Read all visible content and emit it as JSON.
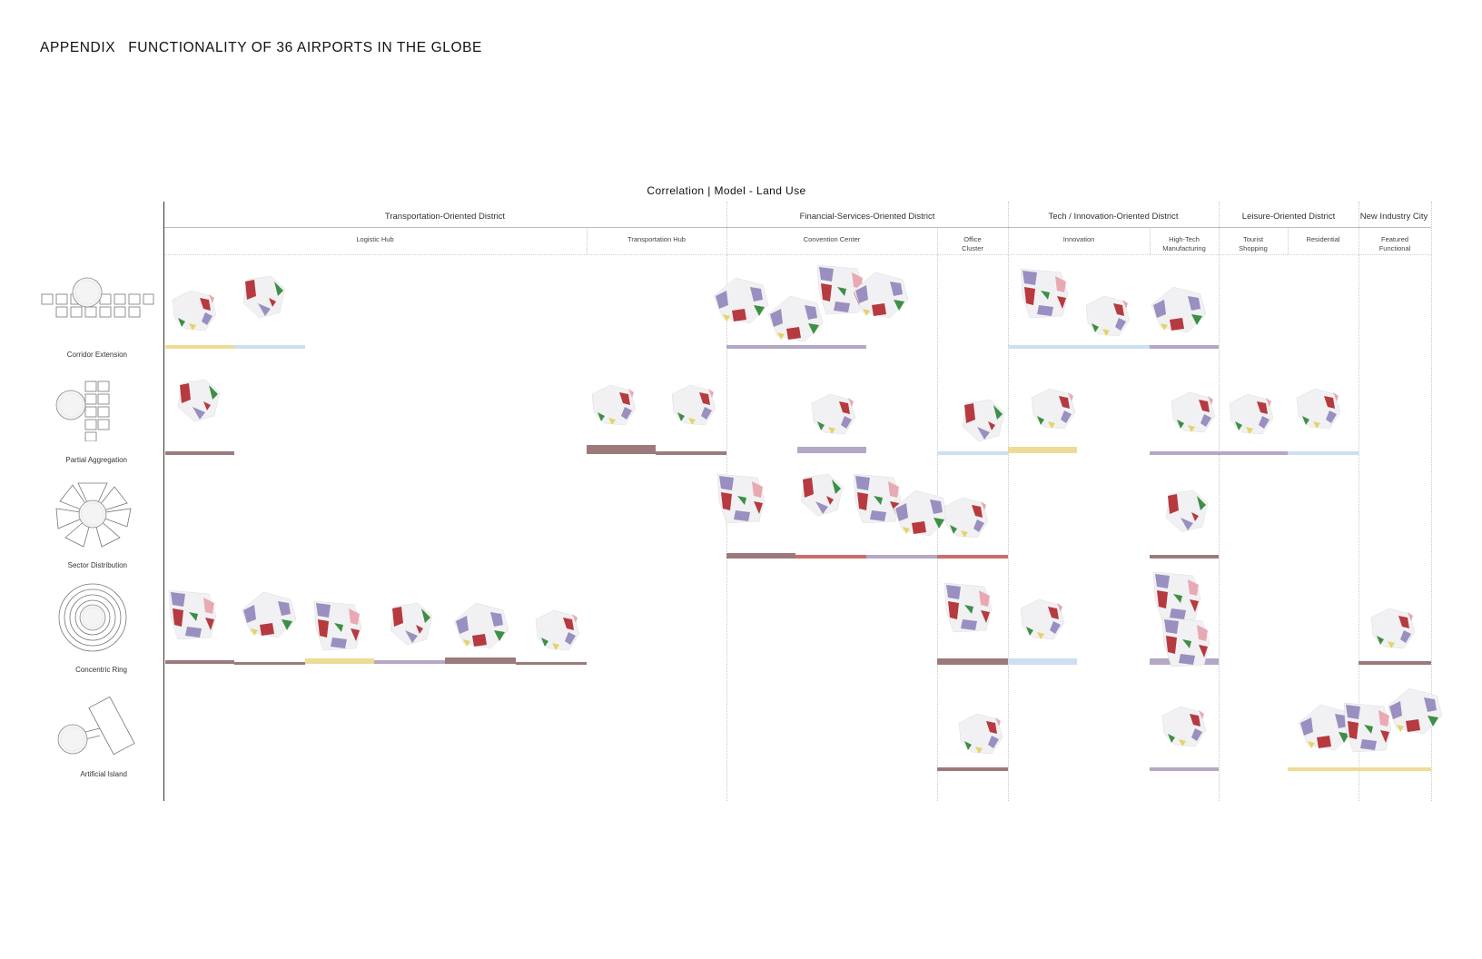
{
  "header": {
    "appendix": "APPENDIX",
    "title": "FUNCTIONALITY OF 36 AIRPORTS IN THE GLOBE"
  },
  "chart": {
    "title": "Correlation | Model - Land Use",
    "categories": [
      "Transportation-Oriented District",
      "Financial-Services-Oriented District",
      "Tech / Innovation-Oriented District",
      "Leisure-Oriented District",
      "New Industry City"
    ],
    "subcategories": [
      {
        "line1": "Logistic Hub",
        "line2": ""
      },
      {
        "line1": "Transportation Hub",
        "line2": ""
      },
      {
        "line1": "Convention Center",
        "line2": ""
      },
      {
        "line1": "Office",
        "line2": "Cluster"
      },
      {
        "line1": "Innovation",
        "line2": ""
      },
      {
        "line1": "High-Tech",
        "line2": "Manufacturing"
      },
      {
        "line1": "Tourist",
        "line2": "Shopping"
      },
      {
        "line1": "Residential",
        "line2": ""
      },
      {
        "line1": "Featured",
        "line2": "Functional"
      }
    ],
    "models": [
      "Corridor Extension",
      "Partial Aggregation",
      "Sector Distribution",
      "Concentric Ring",
      "Artificial Island"
    ]
  },
  "colors": {
    "brown": "#9c7a7c",
    "purple": "#b5a7c6",
    "blue": "#cddff0",
    "yellow": "#eddc96",
    "red": "#cf6b6b",
    "plot_red": "#b63a3f",
    "plot_green": "#3e8f46",
    "plot_purple": "#9a8fc0",
    "plot_yellow": "#e5d36a",
    "plot_pink": "#e9a9b3",
    "plot_gray": "#f1f1f3"
  }
}
